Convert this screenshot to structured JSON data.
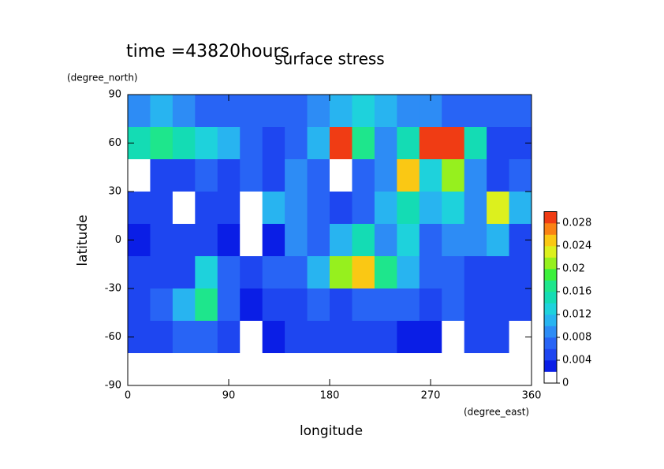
{
  "chart_data": {
    "type": "contour",
    "title": "surface stress",
    "subtitle": "time =43820hours",
    "x_label": "longitude",
    "x_unit": "(degree_east)",
    "y_label": "latitude",
    "y_unit": "(degree_north)",
    "xlim": [
      0,
      360
    ],
    "xticks": [
      0,
      90,
      180,
      270,
      360
    ],
    "ylim": [
      -90,
      90
    ],
    "yticks": [
      -90,
      -60,
      -30,
      0,
      30,
      60,
      90
    ],
    "x": [
      10,
      30,
      50,
      70,
      90,
      110,
      130,
      150,
      170,
      190,
      210,
      230,
      250,
      270,
      290,
      310,
      330,
      350
    ],
    "y": [
      80,
      60,
      40,
      20,
      0,
      -20,
      -40,
      -60,
      -80
    ],
    "z": [
      [
        0.008,
        0.01,
        0.008,
        0.006,
        0.006,
        0.006,
        0.006,
        0.006,
        0.008,
        0.01,
        0.012,
        0.01,
        0.008,
        0.008,
        0.006,
        0.006,
        0.006,
        0.006
      ],
      [
        0.014,
        0.016,
        0.014,
        0.012,
        0.01,
        0.006,
        0.004,
        0.006,
        0.01,
        0.03,
        0.016,
        0.008,
        0.014,
        0.03,
        0.028,
        0.014,
        0.004,
        0.004
      ],
      [
        0,
        0.004,
        0.004,
        0.006,
        0.004,
        0.006,
        0.004,
        0.008,
        0.006,
        0,
        0.006,
        0.008,
        0.024,
        0.012,
        0.02,
        0.008,
        0.004,
        0.006
      ],
      [
        0.004,
        0.004,
        0,
        0.004,
        0.004,
        0,
        0.01,
        0.008,
        0.006,
        0.004,
        0.006,
        0.01,
        0.014,
        0.01,
        0.012,
        0.008,
        0.022,
        0.01
      ],
      [
        0.002,
        0.004,
        0.004,
        0.004,
        0.002,
        0,
        0.002,
        0.008,
        0.006,
        0.01,
        0.014,
        0.008,
        0.012,
        0.006,
        0.008,
        0.008,
        0.01,
        0.004
      ],
      [
        0.004,
        0.004,
        0.004,
        0.012,
        0.006,
        0.004,
        0.006,
        0.006,
        0.01,
        0.02,
        0.024,
        0.016,
        0.01,
        0.006,
        0.006,
        0.004,
        0.004,
        0.004
      ],
      [
        0.004,
        0.006,
        0.01,
        0.016,
        0.006,
        0.002,
        0.004,
        0.004,
        0.006,
        0.004,
        0.006,
        0.006,
        0.006,
        0.004,
        0.006,
        0.004,
        0.004,
        0.004
      ],
      [
        0.004,
        0.004,
        0.006,
        0.006,
        0.004,
        0,
        0.002,
        0.004,
        0.004,
        0.004,
        0.004,
        0.004,
        0.002,
        0.002,
        0,
        0.004,
        0.004,
        0
      ],
      [
        0,
        0,
        0,
        0,
        0,
        0,
        0,
        0,
        0,
        0,
        0,
        0,
        0,
        0,
        0,
        0,
        0,
        0
      ]
    ],
    "levels": [
      0,
      0.002,
      0.004,
      0.006,
      0.008,
      0.01,
      0.012,
      0.014,
      0.016,
      0.018,
      0.02,
      0.022,
      0.024,
      0.026,
      0.028,
      0.03
    ],
    "colors": [
      "#ffffff",
      "#0a1ee6",
      "#1e46f0",
      "#2864f5",
      "#2d8cf5",
      "#28b4f0",
      "#1ed2dc",
      "#14dcb4",
      "#1ee68c",
      "#3cf03c",
      "#96f01e",
      "#dcf01e",
      "#fac814",
      "#fa8214",
      "#f03c14"
    ],
    "colorbar_ticks": [
      0,
      0.004,
      0.008,
      0.012,
      0.016,
      0.02,
      0.024,
      0.028
    ]
  }
}
